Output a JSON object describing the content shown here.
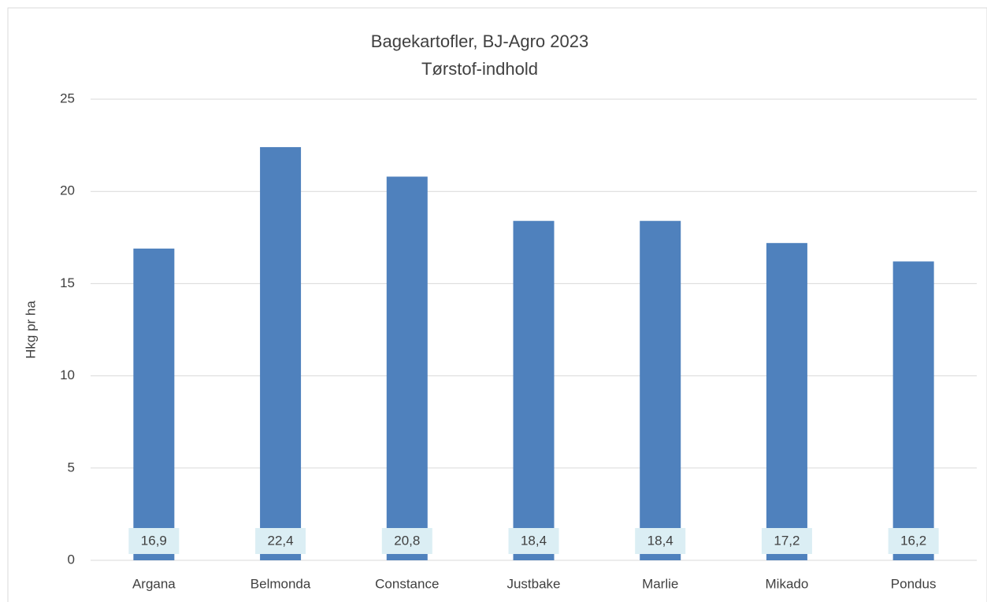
{
  "chart_data": {
    "type": "bar",
    "title": "Bagekartofler, BJ-Agro 2023",
    "subtitle": "Tørstof-indhold",
    "y_label": "Hkg pr ha",
    "categories": [
      "Argana",
      "Belmonda",
      "Constance",
      "Justbake",
      "Marlie",
      "Mikado",
      "Pondus"
    ],
    "values": [
      16.9,
      22.4,
      20.8,
      18.4,
      18.4,
      17.2,
      16.2
    ],
    "value_labels": [
      "16,9",
      "22,4",
      "20,8",
      "18,4",
      "18,4",
      "17,2",
      "16,2"
    ],
    "color": "#4f81bd",
    "ylim": [
      0,
      25
    ],
    "yticks": [
      0,
      5,
      10,
      15,
      20,
      25
    ],
    "grid": true
  }
}
